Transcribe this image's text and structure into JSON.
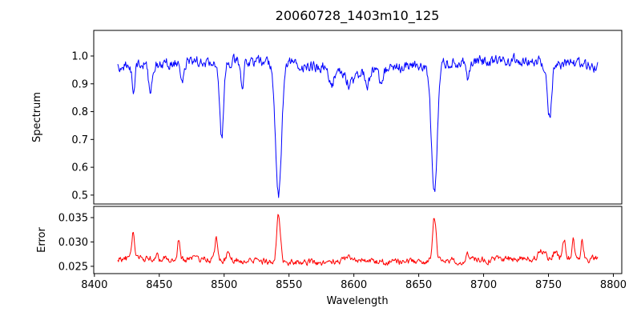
{
  "figure": {
    "title": "20060728_1403m10_125",
    "background": "#ffffff"
  },
  "chart_data": [
    {
      "type": "line",
      "series_name": "spectrum",
      "title": "20060728_1403m10_125",
      "ylabel": "Spectrum",
      "color": "#0000ff",
      "grid": false,
      "xlim": [
        8399.5,
        8806.5
      ],
      "ylim": [
        0.468,
        1.092
      ],
      "yticks": [
        0.5,
        0.6,
        0.7,
        0.8,
        0.9,
        1.0
      ],
      "ytick_labels": [
        "0.5",
        "0.6",
        "0.7",
        "0.8",
        "0.9",
        "1.0"
      ],
      "x_start": 8418,
      "x_end": 8788,
      "x_step": 0.5,
      "continuum": 0.97,
      "noise_sigma": 0.012,
      "absorption_lines": [
        {
          "center": 8430,
          "depth": 0.08,
          "width": 1.2
        },
        {
          "center": 8443,
          "depth": 0.11,
          "width": 1.2
        },
        {
          "center": 8468,
          "depth": 0.07,
          "width": 1.2
        },
        {
          "center": 8498,
          "depth": 0.28,
          "width": 1.7
        },
        {
          "center": 8514,
          "depth": 0.07,
          "width": 1.2
        },
        {
          "center": 8542,
          "depth": 0.47,
          "width": 2.3
        },
        {
          "center": 8583,
          "depth": 0.06,
          "width": 2.0
        },
        {
          "center": 8598,
          "depth": 0.06,
          "width": 5.0
        },
        {
          "center": 8611,
          "depth": 0.05,
          "width": 2.0
        },
        {
          "center": 8621,
          "depth": 0.05,
          "width": 2.0
        },
        {
          "center": 8662,
          "depth": 0.46,
          "width": 2.3
        },
        {
          "center": 8688,
          "depth": 0.07,
          "width": 1.5
        },
        {
          "center": 8751,
          "depth": 0.19,
          "width": 1.6
        }
      ]
    },
    {
      "type": "line",
      "series_name": "error",
      "xlabel": "Wavelength",
      "ylabel": "Error",
      "color": "#ff0000",
      "grid": false,
      "xlim": [
        8399.5,
        8806.5
      ],
      "ylim": [
        0.0235,
        0.0373
      ],
      "yticks": [
        0.025,
        0.03,
        0.035
      ],
      "ytick_labels": [
        "0.025",
        "0.030",
        "0.035"
      ],
      "xticks": [
        8400,
        8450,
        8500,
        8550,
        8600,
        8650,
        8700,
        8750,
        8800
      ],
      "xtick_labels": [
        "8400",
        "8450",
        "8500",
        "8550",
        "8600",
        "8650",
        "8700",
        "8750",
        "8800"
      ],
      "x_start": 8418,
      "x_end": 8788,
      "x_step": 0.5,
      "baseline": 0.0262,
      "noise_sigma": 0.0004,
      "peaks": [
        {
          "center": 8430,
          "height": 0.0053,
          "width": 1.0
        },
        {
          "center": 8448,
          "height": 0.0013,
          "width": 0.8
        },
        {
          "center": 8465,
          "height": 0.0043,
          "width": 0.9
        },
        {
          "center": 8494,
          "height": 0.0047,
          "width": 1.0
        },
        {
          "center": 8503,
          "height": 0.0021,
          "width": 0.9
        },
        {
          "center": 8542,
          "height": 0.0097,
          "width": 1.4
        },
        {
          "center": 8598,
          "height": 0.0012,
          "width": 6.0
        },
        {
          "center": 8662,
          "height": 0.0092,
          "width": 1.4
        },
        {
          "center": 8688,
          "height": 0.001,
          "width": 1.5
        },
        {
          "center": 8745,
          "height": 0.0016,
          "width": 2.5
        },
        {
          "center": 8755,
          "height": 0.0014,
          "width": 1.5
        },
        {
          "center": 8762,
          "height": 0.0036,
          "width": 1.2
        },
        {
          "center": 8769,
          "height": 0.004,
          "width": 1.0
        },
        {
          "center": 8776,
          "height": 0.0036,
          "width": 0.9
        }
      ]
    }
  ]
}
